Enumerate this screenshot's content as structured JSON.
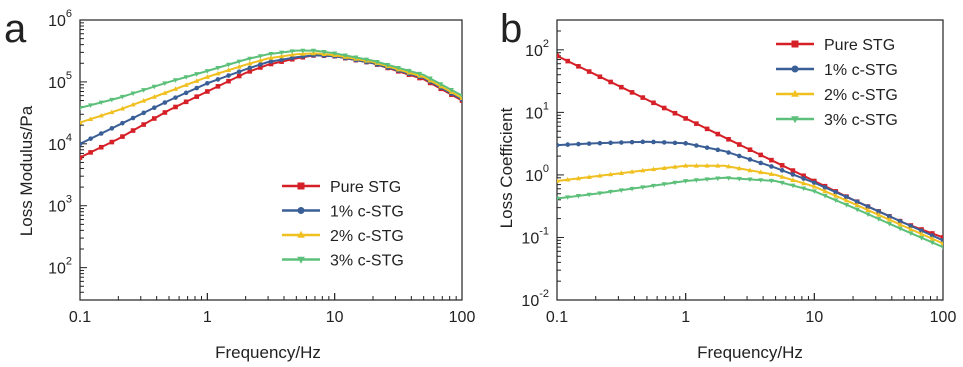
{
  "chart_data": [
    {
      "panel_label": "a",
      "type": "line",
      "xscale": "log",
      "yscale": "log",
      "xlabel": "Frequency/Hz",
      "ylabel": "Loss Modulus/Pa",
      "xlim": [
        0.1,
        100
      ],
      "ylim": [
        30,
        1000000
      ],
      "xticks": [
        {
          "value": 0.1,
          "label": "0.1"
        },
        {
          "value": 1,
          "label": "1"
        },
        {
          "value": 10,
          "label": "10"
        },
        {
          "value": 100,
          "label": "100"
        }
      ],
      "yticks": [
        {
          "value": 100,
          "base": "10",
          "exp": "2"
        },
        {
          "value": 1000,
          "base": "10",
          "exp": "3"
        },
        {
          "value": 10000,
          "base": "10",
          "exp": "4"
        },
        {
          "value": 100000,
          "base": "10",
          "exp": "5"
        },
        {
          "value": 1000000,
          "base": "10",
          "exp": "6"
        }
      ],
      "legend_position": "lower-right",
      "grid": false,
      "series": [
        {
          "name": "Pure STG",
          "color": "#d62028",
          "marker": "square",
          "x": [
            0.1,
            0.2,
            0.5,
            1,
            2,
            3,
            5,
            7,
            10,
            20,
            50,
            100
          ],
          "y": [
            6000,
            12000,
            35000,
            70000,
            140000,
            190000,
            240000,
            270000,
            260000,
            200000,
            110000,
            50000
          ]
        },
        {
          "name": "1% c-STG",
          "color": "#3a5f96",
          "marker": "circle",
          "x": [
            0.1,
            0.2,
            0.5,
            1,
            2,
            3,
            5,
            7,
            10,
            20,
            50,
            100
          ],
          "y": [
            10000,
            20000,
            50000,
            95000,
            160000,
            210000,
            250000,
            270000,
            260000,
            200000,
            115000,
            52000
          ]
        },
        {
          "name": "2% c-STG",
          "color": "#f0c020",
          "marker": "triangle-up",
          "x": [
            0.1,
            0.2,
            0.5,
            1,
            2,
            3,
            5,
            7,
            10,
            20,
            50,
            100
          ],
          "y": [
            22000,
            35000,
            70000,
            120000,
            190000,
            240000,
            280000,
            290000,
            270000,
            210000,
            120000,
            55000
          ]
        },
        {
          "name": "3% c-STG",
          "color": "#5cc07a",
          "marker": "triangle-down",
          "x": [
            0.1,
            0.2,
            0.5,
            1,
            2,
            3,
            5,
            7,
            10,
            20,
            50,
            100
          ],
          "y": [
            38000,
            55000,
            100000,
            150000,
            230000,
            280000,
            320000,
            320000,
            290000,
            220000,
            130000,
            60000
          ]
        }
      ]
    },
    {
      "panel_label": "b",
      "type": "line",
      "xscale": "log",
      "yscale": "log",
      "xlabel": "Frequency/Hz",
      "ylabel": "Loss Coefficient",
      "xlim": [
        0.1,
        100
      ],
      "ylim": [
        0.01,
        300
      ],
      "xticks": [
        {
          "value": 0.1,
          "label": "0.1"
        },
        {
          "value": 1,
          "label": "1"
        },
        {
          "value": 10,
          "label": "10"
        },
        {
          "value": 100,
          "label": "100"
        }
      ],
      "yticks": [
        {
          "value": 0.01,
          "base": "10",
          "exp": "-2"
        },
        {
          "value": 0.1,
          "base": "10",
          "exp": "-1"
        },
        {
          "value": 1,
          "base": "10",
          "exp": "0"
        },
        {
          "value": 10,
          "base": "10",
          "exp": "1"
        },
        {
          "value": 100,
          "base": "10",
          "exp": "2"
        }
      ],
      "legend_position": "top-right",
      "grid": false,
      "series": [
        {
          "name": "Pure STG",
          "color": "#d62028",
          "marker": "square",
          "x": [
            0.1,
            0.2,
            0.5,
            1,
            2,
            5,
            10,
            20,
            50,
            100
          ],
          "y": [
            80,
            40,
            16,
            8,
            4,
            1.6,
            0.8,
            0.4,
            0.17,
            0.1
          ]
        },
        {
          "name": "1% c-STG",
          "color": "#3a5f96",
          "marker": "circle",
          "x": [
            0.1,
            0.2,
            0.5,
            1,
            2,
            5,
            10,
            20,
            50,
            100
          ],
          "y": [
            3,
            3.2,
            3.4,
            3.2,
            2.4,
            1.3,
            0.75,
            0.4,
            0.17,
            0.09
          ]
        },
        {
          "name": "2% c-STG",
          "color": "#f0c020",
          "marker": "triangle-up",
          "x": [
            0.1,
            0.2,
            0.5,
            1,
            2,
            5,
            10,
            20,
            50,
            100
          ],
          "y": [
            0.8,
            0.95,
            1.2,
            1.4,
            1.4,
            1.0,
            0.65,
            0.35,
            0.15,
            0.08
          ]
        },
        {
          "name": "3% c-STG",
          "color": "#5cc07a",
          "marker": "triangle-down",
          "x": [
            0.1,
            0.2,
            0.5,
            1,
            2,
            5,
            10,
            20,
            50,
            100
          ],
          "y": [
            0.42,
            0.5,
            0.65,
            0.8,
            0.9,
            0.8,
            0.55,
            0.3,
            0.13,
            0.07
          ]
        }
      ]
    }
  ]
}
